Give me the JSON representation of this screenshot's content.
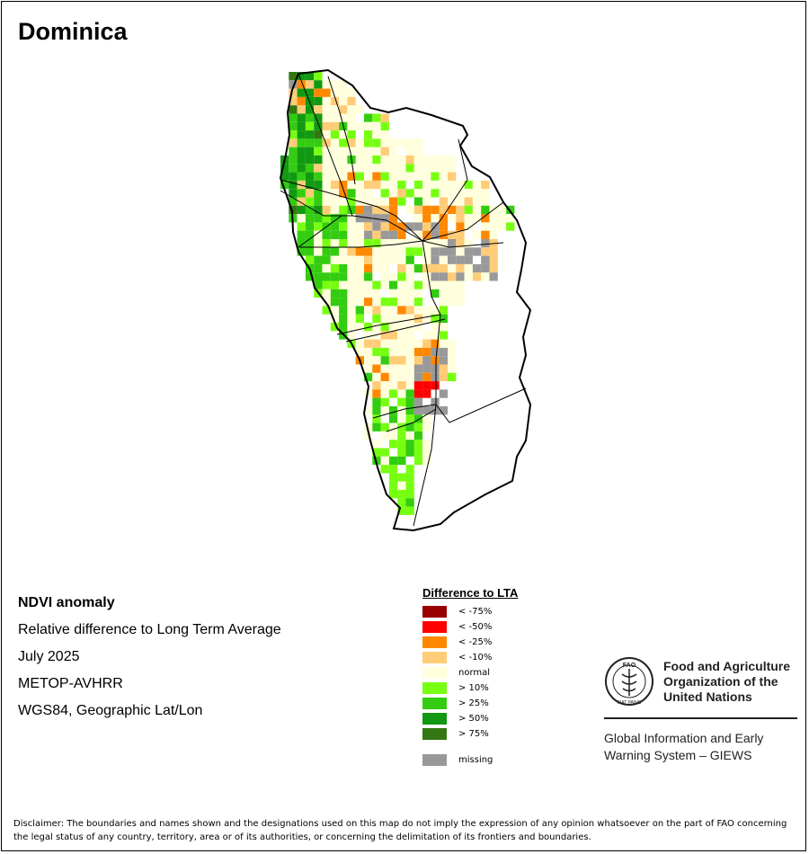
{
  "title": "Dominica",
  "info": {
    "heading": "NDVI anomaly",
    "subtitle": "Relative difference to Long Term Average",
    "period": "July 2025",
    "sensor": "METOP-AVHRR",
    "projection": "WGS84, Geographic Lat/Lon"
  },
  "legend": {
    "title": "Difference to LTA",
    "items": [
      {
        "label": "< -75%",
        "color": "#990000"
      },
      {
        "label": "< -50%",
        "color": "#ff0000"
      },
      {
        "label": "< -25%",
        "color": "#ff8800"
      },
      {
        "label": "< -10%",
        "color": "#ffcc77"
      },
      {
        "label": "normal",
        "color": "#ffffdd"
      },
      {
        "label": "> 10%",
        "color": "#77ff11"
      },
      {
        "label": "> 25%",
        "color": "#33cc11"
      },
      {
        "label": "> 50%",
        "color": "#119911"
      },
      {
        "label": "> 75%",
        "color": "#337711"
      }
    ],
    "missing": {
      "label": "missing",
      "color": "#999999"
    }
  },
  "fao": {
    "emblem_text": "FAO",
    "emblem_motto": "FIAT PANIS",
    "name_lines": [
      "Food and Agriculture",
      "Organization of the",
      "United Nations"
    ],
    "giews_lines": [
      "Global Information and Early",
      "Warning System – GIEWS"
    ]
  },
  "disclaimer": "Disclaimer: The boundaries and names shown and the designations used on this map do not imply the expression of any opinion whatsoever on the part of FAO concerning the legal status of any country, territory, area or of its authorities, or concerning the delimitation of its frontiers and boundaries."
}
